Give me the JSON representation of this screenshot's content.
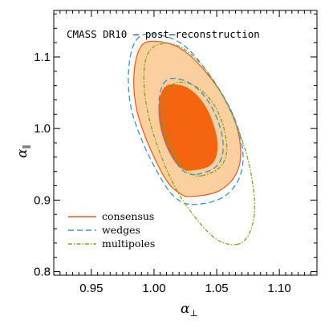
{
  "chart_data": {
    "type": "contour",
    "title": "CMASS DR10 – post–reconstruction",
    "xlabel": "α",
    "xlabel_sub": "⊥",
    "ylabel": "α",
    "ylabel_sub": "∥",
    "xlim": [
      0.92,
      1.13
    ],
    "ylim": [
      0.795,
      1.165
    ],
    "xticks": [
      0.95,
      1.0,
      1.05,
      1.1
    ],
    "xtick_labels": [
      "0.95",
      "1.00",
      "1.05",
      "1.10"
    ],
    "yticks": [
      0.8,
      0.9,
      1.0,
      1.1
    ],
    "ytick_labels": [
      "0.8",
      "0.9",
      "1.0",
      "1.1"
    ],
    "grid": false,
    "legend_position": "bottom-left",
    "legend": [
      {
        "label": "consensus",
        "style": "solid",
        "color": "#e8571c"
      },
      {
        "label": "wedges",
        "style": "dashed",
        "color": "#3b8fd6"
      },
      {
        "label": "multipoles",
        "style": "dash-dot",
        "color": "#7fa41e"
      }
    ],
    "series": [
      {
        "name": "consensus",
        "contours": [
          {
            "level": "2-sigma",
            "fill": "#fccf9e",
            "edge": "#e8571c",
            "points": [
              [
                1.03,
                0.905
              ],
              [
                1.052,
                0.913
              ],
              [
                1.066,
                0.938
              ],
              [
                1.069,
                0.975
              ],
              [
                1.062,
                1.022
              ],
              [
                1.045,
                1.071
              ],
              [
                1.022,
                1.111
              ],
              [
                1.0,
                1.122
              ],
              [
                0.989,
                1.113
              ],
              [
                0.984,
                1.076
              ],
              [
                0.986,
                1.028
              ],
              [
                0.995,
                0.98
              ],
              [
                1.009,
                0.93
              ],
              [
                1.02,
                0.91
              ]
            ]
          },
          {
            "level": "1-sigma",
            "fill": "#f5650f",
            "edge": "#f5650f",
            "points": [
              [
                1.03,
                0.942
              ],
              [
                1.044,
                0.948
              ],
              [
                1.05,
                0.966
              ],
              [
                1.049,
                0.994
              ],
              [
                1.041,
                1.03
              ],
              [
                1.028,
                1.055
              ],
              [
                1.013,
                1.061
              ],
              [
                1.006,
                1.049
              ],
              [
                1.004,
                1.02
              ],
              [
                1.008,
                0.985
              ],
              [
                1.016,
                0.956
              ],
              [
                1.023,
                0.944
              ]
            ]
          }
        ]
      },
      {
        "name": "wedges",
        "color": "#3b8fd6",
        "contours": [
          {
            "level": "2-sigma",
            "points": [
              [
                1.03,
                0.894
              ],
              [
                1.053,
                0.902
              ],
              [
                1.067,
                0.927
              ],
              [
                1.071,
                0.965
              ],
              [
                1.064,
                1.015
              ],
              [
                1.047,
                1.068
              ],
              [
                1.024,
                1.116
              ],
              [
                1.0,
                1.132
              ],
              [
                0.986,
                1.124
              ],
              [
                0.98,
                1.087
              ],
              [
                0.981,
                1.035
              ],
              [
                0.99,
                0.985
              ],
              [
                1.004,
                0.935
              ],
              [
                1.016,
                0.905
              ]
            ]
          },
          {
            "level": "1-sigma",
            "points": [
              [
                1.034,
                0.936
              ],
              [
                1.049,
                0.946
              ],
              [
                1.055,
                0.968
              ],
              [
                1.053,
                1.0
              ],
              [
                1.044,
                1.036
              ],
              [
                1.03,
                1.062
              ],
              [
                1.014,
                1.07
              ],
              [
                1.006,
                1.057
              ],
              [
                1.004,
                1.026
              ],
              [
                1.008,
                0.99
              ],
              [
                1.016,
                0.958
              ],
              [
                1.024,
                0.94
              ]
            ]
          }
        ]
      },
      {
        "name": "multipoles",
        "color": "#7fa41e",
        "contours": [
          {
            "level": "2-sigma",
            "points": [
              [
                1.066,
                0.838
              ],
              [
                1.075,
                0.85
              ],
              [
                1.08,
                0.88
              ],
              [
                1.079,
                0.92
              ],
              [
                1.072,
                0.975
              ],
              [
                1.058,
                1.035
              ],
              [
                1.04,
                1.085
              ],
              [
                1.02,
                1.115
              ],
              [
                1.003,
                1.117
              ],
              [
                0.994,
                1.1
              ],
              [
                0.992,
                1.062
              ],
              [
                0.996,
                1.015
              ],
              [
                1.006,
                0.96
              ],
              [
                1.02,
                0.908
              ],
              [
                1.038,
                0.865
              ],
              [
                1.052,
                0.843
              ]
            ]
          },
          {
            "level": "1-sigma",
            "points": [
              [
                1.038,
                0.934
              ],
              [
                1.052,
                0.945
              ],
              [
                1.058,
                0.968
              ],
              [
                1.055,
                1.005
              ],
              [
                1.046,
                1.038
              ],
              [
                1.032,
                1.06
              ],
              [
                1.018,
                1.064
              ],
              [
                1.01,
                1.05
              ],
              [
                1.008,
                1.02
              ],
              [
                1.012,
                0.985
              ],
              [
                1.02,
                0.955
              ],
              [
                1.028,
                0.938
              ]
            ]
          }
        ]
      }
    ]
  }
}
